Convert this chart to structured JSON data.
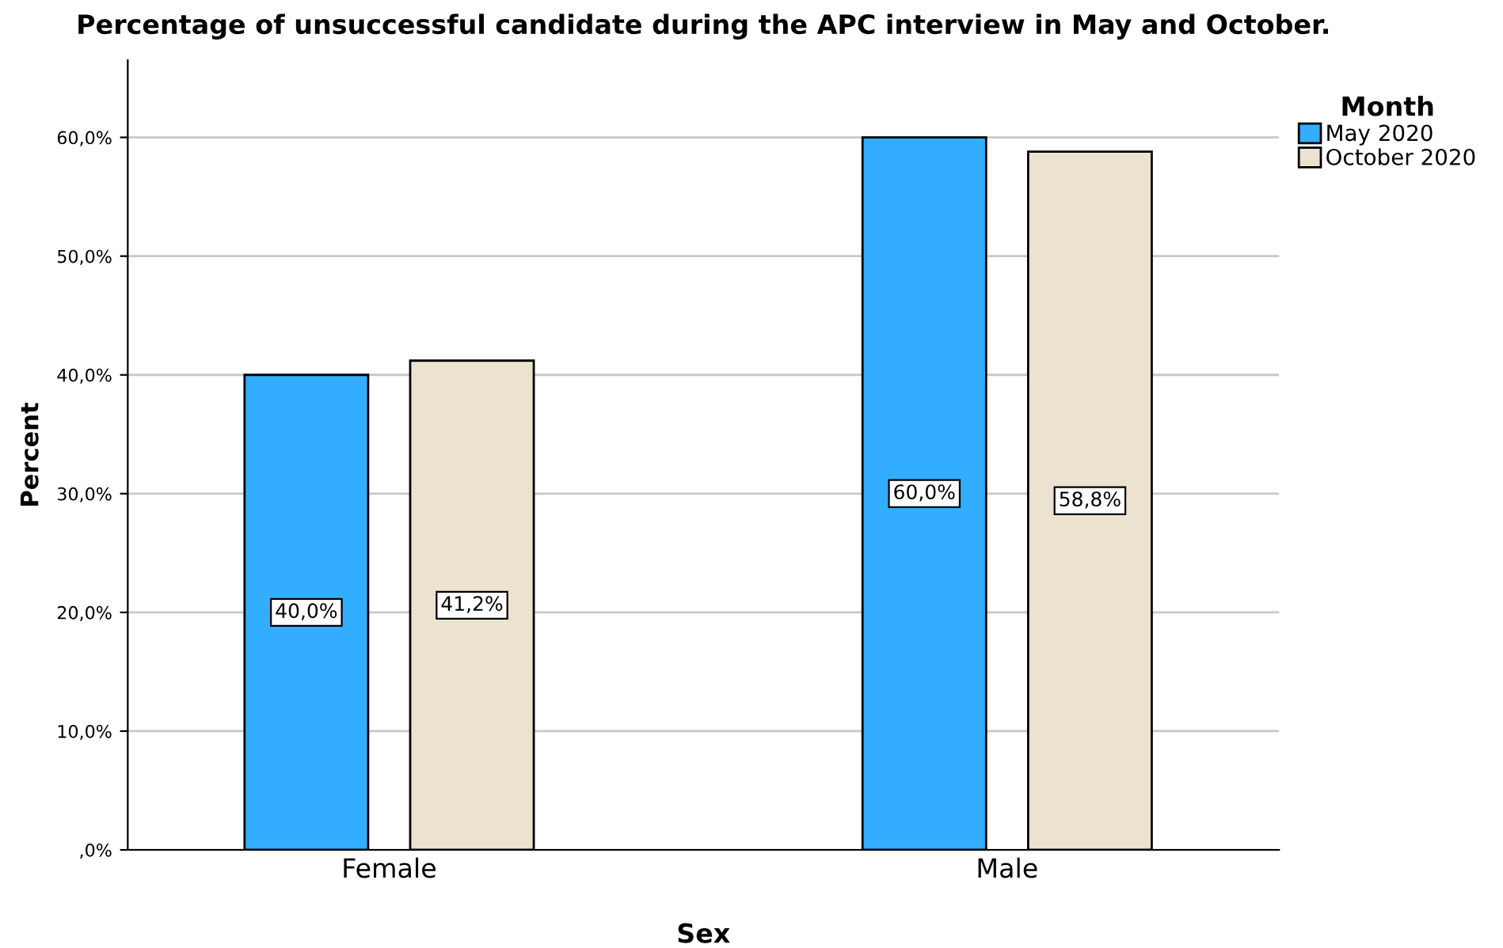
{
  "chart_data": {
    "type": "bar",
    "title": "Percentage of unsuccessful candidate during the APC interview in May and October.",
    "xlabel": "Sex",
    "ylabel": "Percent",
    "legend_title": "Month",
    "categories": [
      "Female",
      "Male"
    ],
    "series": [
      {
        "name": "May 2020",
        "color": "#33adff",
        "values": [
          40.0,
          60.0
        ],
        "value_labels": [
          "40,0%",
          "60,0%"
        ]
      },
      {
        "name": "October 2020",
        "color": "#ebe3cf",
        "values": [
          41.2,
          58.8
        ],
        "value_labels": [
          "41,2%",
          "58,8%"
        ]
      }
    ],
    "ylim": [
      0,
      66.5
    ],
    "yticks": [
      {
        "value": 0,
        "label": ",0%"
      },
      {
        "value": 10,
        "label": "10,0%"
      },
      {
        "value": 20,
        "label": "20,0%"
      },
      {
        "value": 30,
        "label": "30,0%"
      },
      {
        "value": 40,
        "label": "40,0%"
      },
      {
        "value": 50,
        "label": "50,0%"
      },
      {
        "value": 60,
        "label": "60,0%"
      }
    ],
    "grid": "y",
    "legend": "top right"
  }
}
